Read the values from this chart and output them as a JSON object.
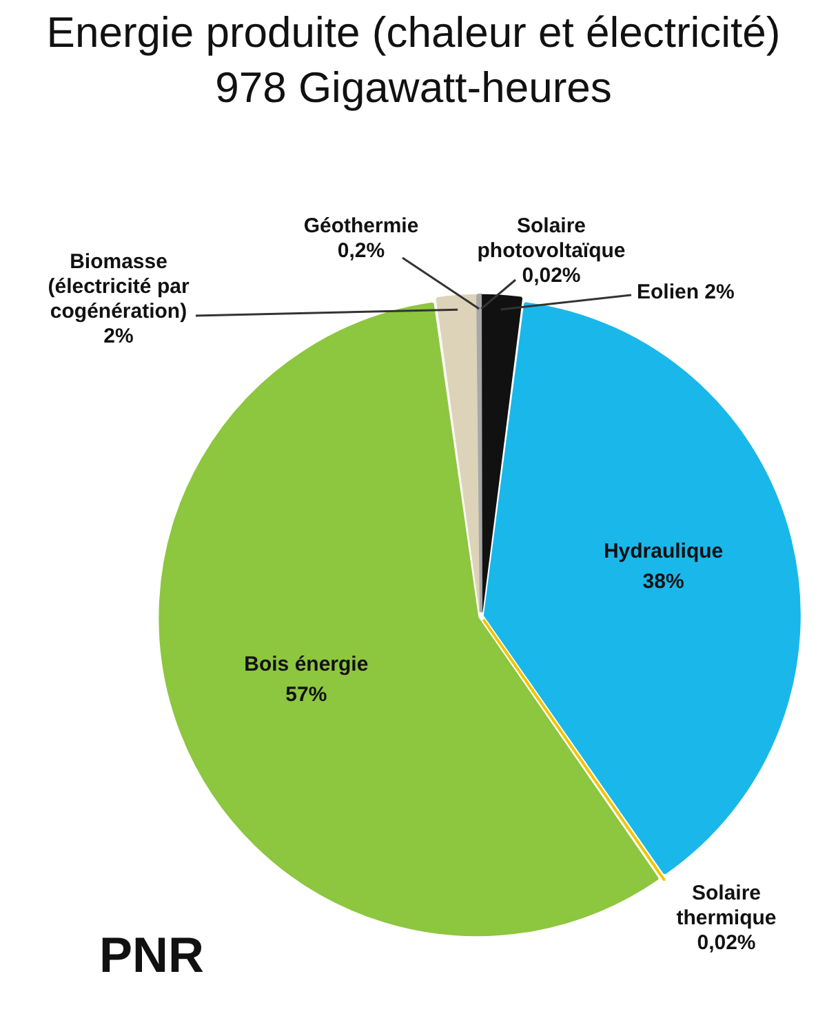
{
  "chart_data": {
    "type": "pie",
    "title": "Energie produite (chaleur et électricité)",
    "subtitle": "978 Gigawatt-heures",
    "categories": [
      "Solaire photovoltaïque",
      "Eolien",
      "Hydraulique",
      "Solaire thermique",
      "Bois énergie",
      "Biomasse (électricité par cogénération)",
      "Géothermie"
    ],
    "values": [
      0.02,
      2,
      38,
      0.02,
      57,
      2,
      0.2
    ],
    "colors": [
      "#c00000",
      "#111111",
      "#1ab7ea",
      "#f2c500",
      "#8dc63f",
      "#ddd3b8",
      "#a8a8a8"
    ],
    "value_labels": [
      "0,02%",
      "2%",
      "38%",
      "0,02%",
      "57%",
      "2%",
      "0,2%"
    ],
    "annotations": [
      "PNR"
    ]
  }
}
